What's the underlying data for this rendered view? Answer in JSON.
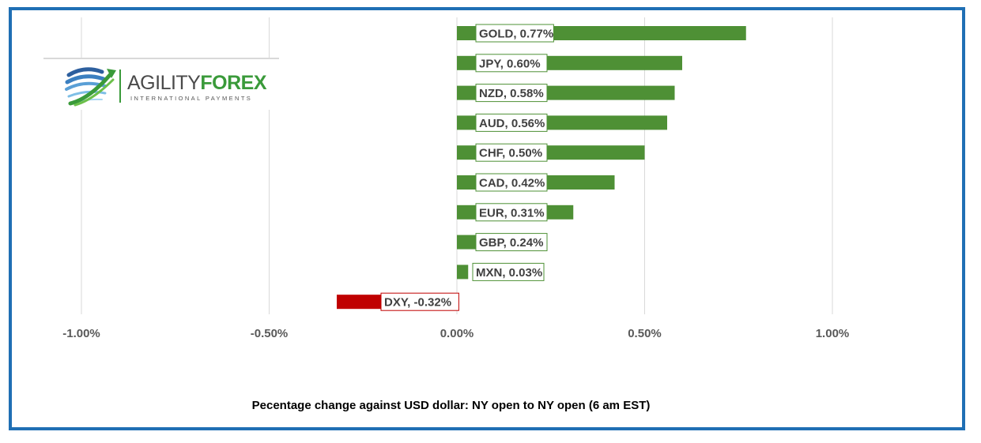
{
  "chart_data": {
    "type": "bar",
    "orientation": "horizontal",
    "categories": [
      "GOLD",
      "JPY",
      "NZD",
      "AUD",
      "CHF",
      "CAD",
      "EUR",
      "GBP",
      "MXN",
      "DXY"
    ],
    "values": [
      0.77,
      0.6,
      0.58,
      0.56,
      0.5,
      0.42,
      0.31,
      0.24,
      0.03,
      -0.32
    ],
    "data_labels": [
      "GOLD, 0.77%",
      "JPY, 0.60%",
      "NZD, 0.58%",
      "AUD, 0.56%",
      "CHF, 0.50%",
      "CAD, 0.42%",
      "EUR, 0.31%",
      "GBP, 0.24%",
      "MXN, 0.03%",
      "DXY, -0.32%"
    ],
    "xlim": [
      -1.0,
      1.0
    ],
    "ticks": [
      -1.0,
      -0.5,
      0.0,
      0.5,
      1.0
    ],
    "tick_labels": [
      "-1.00%",
      "-0.50%",
      "0.00%",
      "0.50%",
      "1.00%"
    ],
    "grid": true,
    "positive_color": "#4e9035",
    "negative_color": "#c00000",
    "xlabel": "Pecentage change against USD dollar: NY open to NY open (6 am EST)"
  },
  "logo": {
    "word_part1": "AGILITY",
    "word_part2": "FOREX",
    "subtitle": "INTERNATIONAL PAYMENTS"
  },
  "frame_color": "#1f6fb4"
}
